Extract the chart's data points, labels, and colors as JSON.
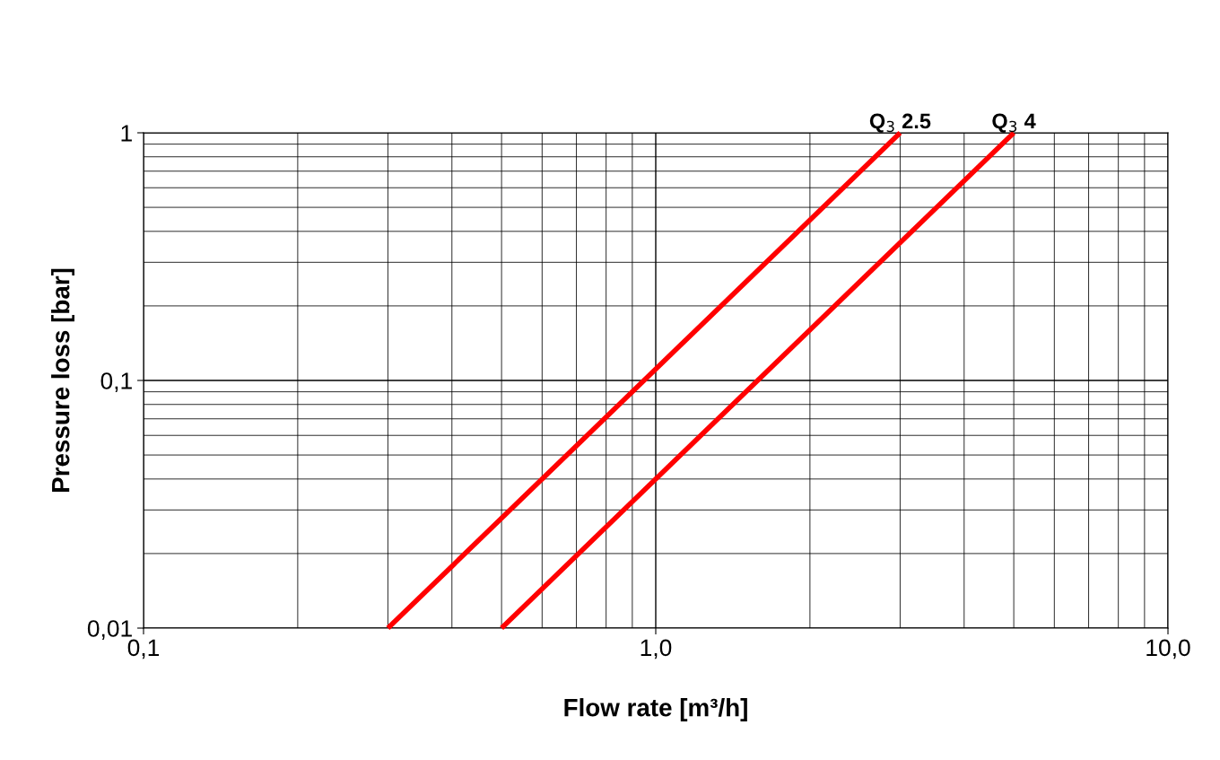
{
  "chart_data": {
    "type": "line",
    "xlabel": "Flow rate [m³/h]",
    "ylabel": "Pressure loss [bar]",
    "log": "xy",
    "grid": true,
    "xlim": [
      0.1,
      10
    ],
    "ylim": [
      0.01,
      1
    ],
    "xticks": [
      {
        "value": 0.1,
        "label": "0,1"
      },
      {
        "value": 1,
        "label": "1,0"
      },
      {
        "value": 10,
        "label": "10,0"
      }
    ],
    "yticks": [
      {
        "value": 0.01,
        "label": "0,01"
      },
      {
        "value": 0.1,
        "label": "0,1"
      },
      1
    ],
    "series": [
      {
        "name": "Q$_{3}$ 2.5",
        "color": "#ff0000",
        "x": [
          0.3,
          3.0
        ],
        "values": [
          0.01,
          1
        ]
      },
      {
        "name": "Q$_{3}$ 4",
        "color": "#ff0000",
        "x": [
          0.5,
          5.0
        ],
        "values": [
          0.01,
          1
        ]
      }
    ]
  }
}
